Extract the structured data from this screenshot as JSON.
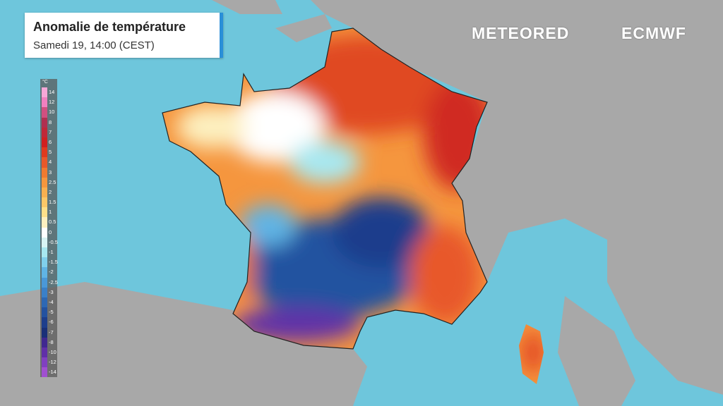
{
  "header": {
    "title": "Anomalie de température",
    "subtitle": "Samedi 19, 14:00 (CEST)"
  },
  "logos": [
    "METEORED",
    "ECMWF"
  ],
  "legend": {
    "unit": "°C",
    "entries": [
      {
        "label": 14,
        "color": "#f7a8d8"
      },
      {
        "label": 12,
        "color": "#f080c0"
      },
      {
        "label": 10,
        "color": "#d05080"
      },
      {
        "label": 8,
        "color": "#b03050"
      },
      {
        "label": 7,
        "color": "#c02838"
      },
      {
        "label": 6,
        "color": "#d02020"
      },
      {
        "label": 5,
        "color": "#e03a1e"
      },
      {
        "label": 4,
        "color": "#e8582a"
      },
      {
        "label": 3,
        "color": "#f07a30"
      },
      {
        "label": 2.5,
        "color": "#f5963e"
      },
      {
        "label": 2,
        "color": "#f8b050"
      },
      {
        "label": 1.5,
        "color": "#fbc868"
      },
      {
        "label": 1,
        "color": "#fde08a"
      },
      {
        "label": 0.5,
        "color": "#fdf0c0"
      },
      {
        "label": 0,
        "color": "#ffffff"
      },
      {
        "label": -0.5,
        "color": "#d8f4f4"
      },
      {
        "label": -1,
        "color": "#a8e8f0"
      },
      {
        "label": -1.5,
        "color": "#80d0ec"
      },
      {
        "label": -2,
        "color": "#60b4e4"
      },
      {
        "label": -2.5,
        "color": "#4a98d8"
      },
      {
        "label": -3,
        "color": "#3a80c8"
      },
      {
        "label": -4,
        "color": "#2e68b4"
      },
      {
        "label": -5,
        "color": "#2452a0"
      },
      {
        "label": -6,
        "color": "#1e3e8c"
      },
      {
        "label": -7,
        "color": "#1a3078"
      },
      {
        "label": -8,
        "color": "#402890"
      },
      {
        "label": -10,
        "color": "#6030a8"
      },
      {
        "label": -12,
        "color": "#8040c0"
      },
      {
        "label": -14,
        "color": "#a050d0"
      }
    ]
  }
}
